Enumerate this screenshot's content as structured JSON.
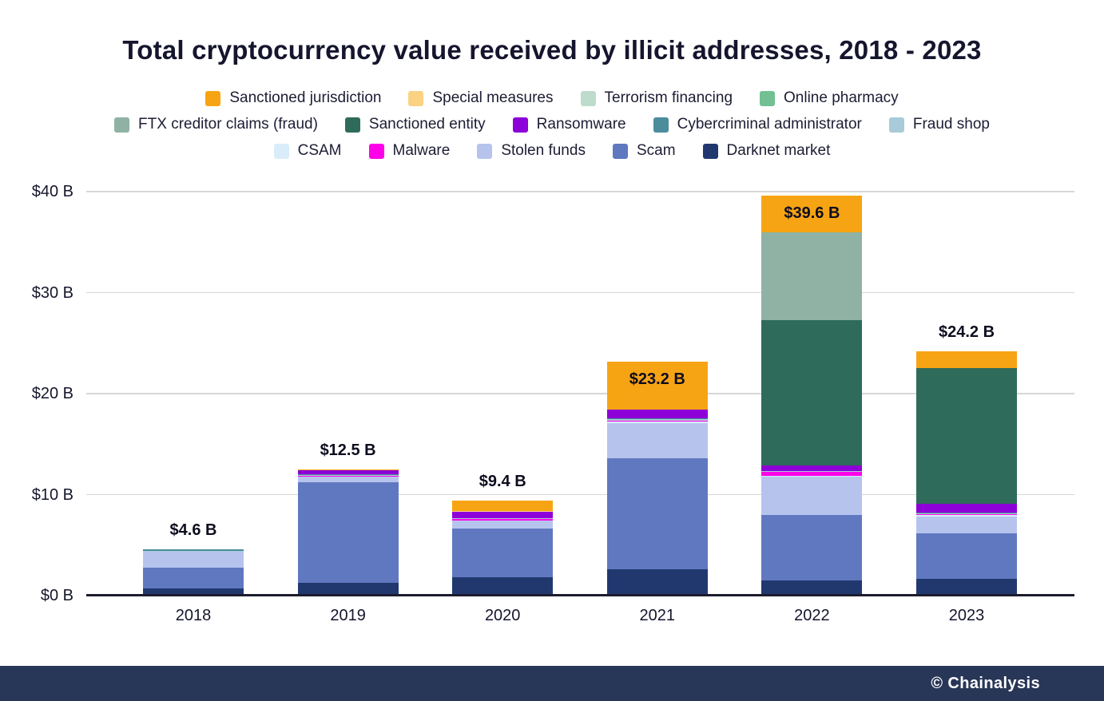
{
  "title": "Total cryptocurrency value received by illicit addresses, 2018 - 2023",
  "footer": {
    "credit": "© Chainalysis"
  },
  "colors": {
    "title_text": "#15152e",
    "footer_bg": "#283657",
    "axis_line": "#1c1c2e",
    "gridline": "#d7d7d7"
  },
  "legend": {
    "rows": [
      [
        {
          "label": "Sanctioned jurisdiction",
          "color": "#f7a414"
        },
        {
          "label": "Special measures",
          "color": "#fbd283"
        },
        {
          "label": "Terrorism financing",
          "color": "#bedccb"
        },
        {
          "label": "Online pharmacy",
          "color": "#72c093"
        }
      ],
      [
        {
          "label": "FTX creditor claims (fraud)",
          "color": "#8fb2a4"
        },
        {
          "label": "Sanctioned entity",
          "color": "#2f6b5a"
        },
        {
          "label": "Ransomware",
          "color": "#8d00d8"
        },
        {
          "label": "Cybercriminal administrator",
          "color": "#4b8d9b"
        },
        {
          "label": "Fraud shop",
          "color": "#a9cad8"
        }
      ],
      [
        {
          "label": "CSAM",
          "color": "#d9ecf9"
        },
        {
          "label": "Malware",
          "color": "#ff00e8"
        },
        {
          "label": "Stolen funds",
          "color": "#b6c4ed"
        },
        {
          "label": "Scam",
          "color": "#6078c0"
        },
        {
          "label": "Darknet market",
          "color": "#21386f"
        }
      ]
    ]
  },
  "chart_data": {
    "type": "bar",
    "stacked": true,
    "title": "Total cryptocurrency value received by illicit addresses, 2018 - 2023",
    "xlabel": "",
    "ylabel": "",
    "unit": "$ billions",
    "ylim": [
      0,
      40
    ],
    "grid": true,
    "legend_position": "top",
    "x": [
      "2018",
      "2019",
      "2020",
      "2021",
      "2022",
      "2023"
    ],
    "y_ticks": [
      {
        "value": 0,
        "label": "$0 B"
      },
      {
        "value": 10,
        "label": "$10 B"
      },
      {
        "value": 20,
        "label": "$20 B"
      },
      {
        "value": 30,
        "label": "$30 B"
      },
      {
        "value": 40,
        "label": "$40 B"
      }
    ],
    "totals": [
      {
        "label": "$4.6 B",
        "value": 4.6,
        "inside": false
      },
      {
        "label": "$12.5 B",
        "value": 12.5,
        "inside": false
      },
      {
        "label": "$9.4 B",
        "value": 9.4,
        "inside": false
      },
      {
        "label": "$23.2 B",
        "value": 23.2,
        "inside": true
      },
      {
        "label": "$39.6 B",
        "value": 39.6,
        "inside": true
      },
      {
        "label": "$24.2 B",
        "value": 24.2,
        "inside": false
      }
    ],
    "series_order_note": "bottom of stack to top of stack",
    "series": [
      {
        "name": "Darknet market",
        "color": "#21386f",
        "values": [
          0.75,
          1.3,
          1.85,
          2.6,
          1.5,
          1.7
        ]
      },
      {
        "name": "Scam",
        "color": "#6078c0",
        "values": [
          2.05,
          9.9,
          4.8,
          11.0,
          6.5,
          4.5
        ]
      },
      {
        "name": "Stolen funds",
        "color": "#b6c4ed",
        "values": [
          1.55,
          0.55,
          0.75,
          3.5,
          3.8,
          1.6
        ]
      },
      {
        "name": "CSAM",
        "color": "#d9ecf9",
        "values": [
          0,
          0.05,
          0.05,
          0.15,
          0.1,
          0.2
        ]
      },
      {
        "name": "Malware",
        "color": "#ff00e8",
        "values": [
          0,
          0.05,
          0.15,
          0.1,
          0.35,
          0.1
        ]
      },
      {
        "name": "Fraud shop",
        "color": "#a9cad8",
        "values": [
          0.05,
          0.1,
          0.05,
          0.1,
          0.05,
          0.05
        ]
      },
      {
        "name": "Cybercriminal administrator",
        "color": "#4b8d9b",
        "values": [
          0.15,
          0.1,
          0.05,
          0.1,
          0.05,
          0.05
        ]
      },
      {
        "name": "Ransomware",
        "color": "#8d00d8",
        "values": [
          0.05,
          0.35,
          0.6,
          0.9,
          0.55,
          0.9
        ]
      },
      {
        "name": "Sanctioned entity",
        "color": "#2f6b5a",
        "values": [
          0,
          0,
          0,
          0,
          14.4,
          13.4
        ]
      },
      {
        "name": "FTX creditor claims (fraud)",
        "color": "#8fb2a4",
        "values": [
          0,
          0,
          0,
          0,
          8.7,
          0
        ]
      },
      {
        "name": "Online pharmacy",
        "color": "#72c093",
        "values": [
          0,
          0,
          0,
          0,
          0,
          0
        ]
      },
      {
        "name": "Terrorism financing",
        "color": "#bedccb",
        "values": [
          0,
          0,
          0,
          0,
          0,
          0
        ]
      },
      {
        "name": "Special measures",
        "color": "#fbd283",
        "values": [
          0,
          0,
          0.1,
          0,
          0,
          0
        ]
      },
      {
        "name": "Sanctioned jurisdiction",
        "color": "#f7a414",
        "values": [
          0,
          0.1,
          1.0,
          4.75,
          3.6,
          1.7
        ]
      }
    ]
  }
}
